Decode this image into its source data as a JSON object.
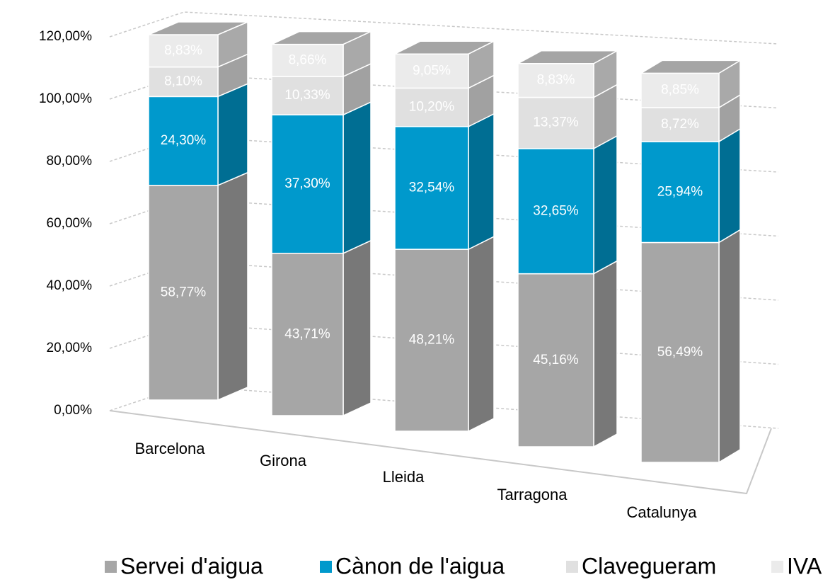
{
  "chart_data": {
    "type": "bar3d_stacked",
    "categories": [
      "Barcelona",
      "Girona",
      "Lleida",
      "Tarragona",
      "Catalunya"
    ],
    "series": [
      {
        "name": "Servei d'aigua",
        "color": "#a6a6a6",
        "values": [
          58.77,
          43.71,
          48.21,
          45.16,
          56.49
        ],
        "value_labels": [
          "58,77%",
          "43,71%",
          "48,21%",
          "45,16%",
          "56,49%"
        ]
      },
      {
        "name": "Cànon de l'aigua",
        "color": "#0099cc",
        "values": [
          24.3,
          37.3,
          32.54,
          32.65,
          25.94
        ],
        "value_labels": [
          "24,30%",
          "37,30%",
          "32,54%",
          "32,65%",
          "25,94%"
        ]
      },
      {
        "name": "Clavegueram",
        "color": "#e0e0e0",
        "values": [
          8.1,
          10.33,
          10.2,
          13.37,
          8.72
        ],
        "value_labels": [
          "8,10%",
          "10,33%",
          "10,20%",
          "13,37%",
          "8,72%"
        ]
      },
      {
        "name": "IVA",
        "color": "#ebebeb",
        "values": [
          8.83,
          8.66,
          9.05,
          8.83,
          8.85
        ],
        "value_labels": [
          "8,83%",
          "8,66%",
          "9,05%",
          "8,83%",
          "8,85%"
        ]
      }
    ],
    "ylim": [
      0,
      120
    ],
    "yticks": [
      {
        "value": 0,
        "label": "0,00%"
      },
      {
        "value": 20,
        "label": "20,00%"
      },
      {
        "value": 40,
        "label": "40,00%"
      },
      {
        "value": 60,
        "label": "60,00%"
      },
      {
        "value": 80,
        "label": "80,00%"
      },
      {
        "value": 100,
        "label": "100,00%"
      },
      {
        "value": 120,
        "label": "120,00%"
      }
    ],
    "grid": true,
    "legend": "bottom"
  }
}
